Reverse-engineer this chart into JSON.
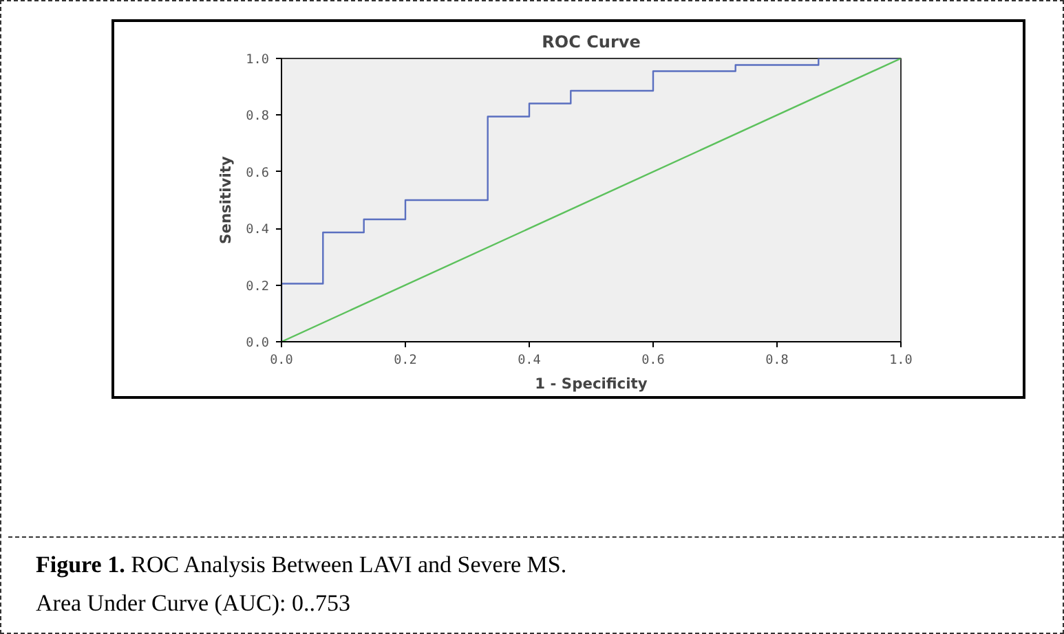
{
  "chart_data": {
    "type": "line",
    "title": "ROC Curve",
    "xlabel": "1 - Specificity",
    "ylabel": "Sensitivity",
    "xlim": [
      0,
      1
    ],
    "ylim": [
      0,
      1
    ],
    "xticks": [
      {
        "value": 0,
        "label": "0.0"
      },
      0.2,
      0.4,
      0.6,
      0.8,
      {
        "value": 1,
        "label": "1.0"
      }
    ],
    "yticks": [
      {
        "value": 0,
        "label": "0.0"
      },
      0.2,
      0.4,
      0.6,
      0.8,
      {
        "value": 1,
        "label": "1.0"
      }
    ],
    "series": [
      {
        "type": "step",
        "color": "#5a6fc0",
        "x": [
          0,
          0,
          0.067,
          0.133,
          0.2,
          0.333,
          0.4,
          0.467,
          0.6,
          0.733,
          0.867,
          1
        ],
        "values": [
          0,
          0.205,
          0.386,
          0.432,
          0.5,
          0.795,
          0.841,
          0.886,
          0.955,
          0.977,
          1,
          1
        ]
      },
      {
        "color": "#5cc15c",
        "x": [
          0,
          1
        ],
        "values": [
          0,
          1
        ]
      }
    ],
    "grid": false,
    "annotations": [
      "Figure 1.",
      "ROC Analysis Between LAVI and Severe MS.",
      "Area Under Curve (AUC): 0..753"
    ]
  }
}
